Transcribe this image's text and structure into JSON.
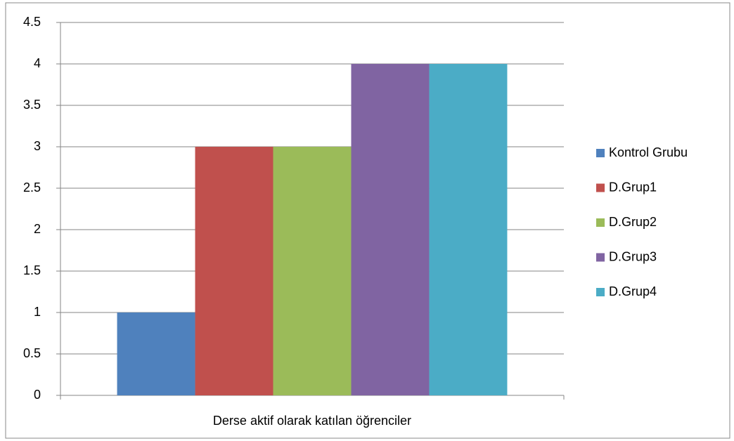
{
  "chart_data": {
    "type": "bar",
    "categories": [
      "Derse aktif olarak katılan öğrenciler"
    ],
    "series": [
      {
        "name": "Kontrol Grubu",
        "color": "#4f81bd",
        "values": [
          1
        ]
      },
      {
        "name": "D.Grup1",
        "color": "#c0504d",
        "values": [
          3
        ]
      },
      {
        "name": "D.Grup2",
        "color": "#9bbb59",
        "values": [
          3
        ]
      },
      {
        "name": "D.Grup3",
        "color": "#8064a2",
        "values": [
          4
        ]
      },
      {
        "name": "D.Grup4",
        "color": "#4bacc6",
        "values": [
          4
        ]
      }
    ],
    "ylim": [
      0,
      4.5
    ],
    "yticks": [
      0,
      0.5,
      1,
      1.5,
      2,
      2.5,
      3,
      3.5,
      4,
      4.5
    ],
    "grid": true,
    "legend": "right"
  }
}
